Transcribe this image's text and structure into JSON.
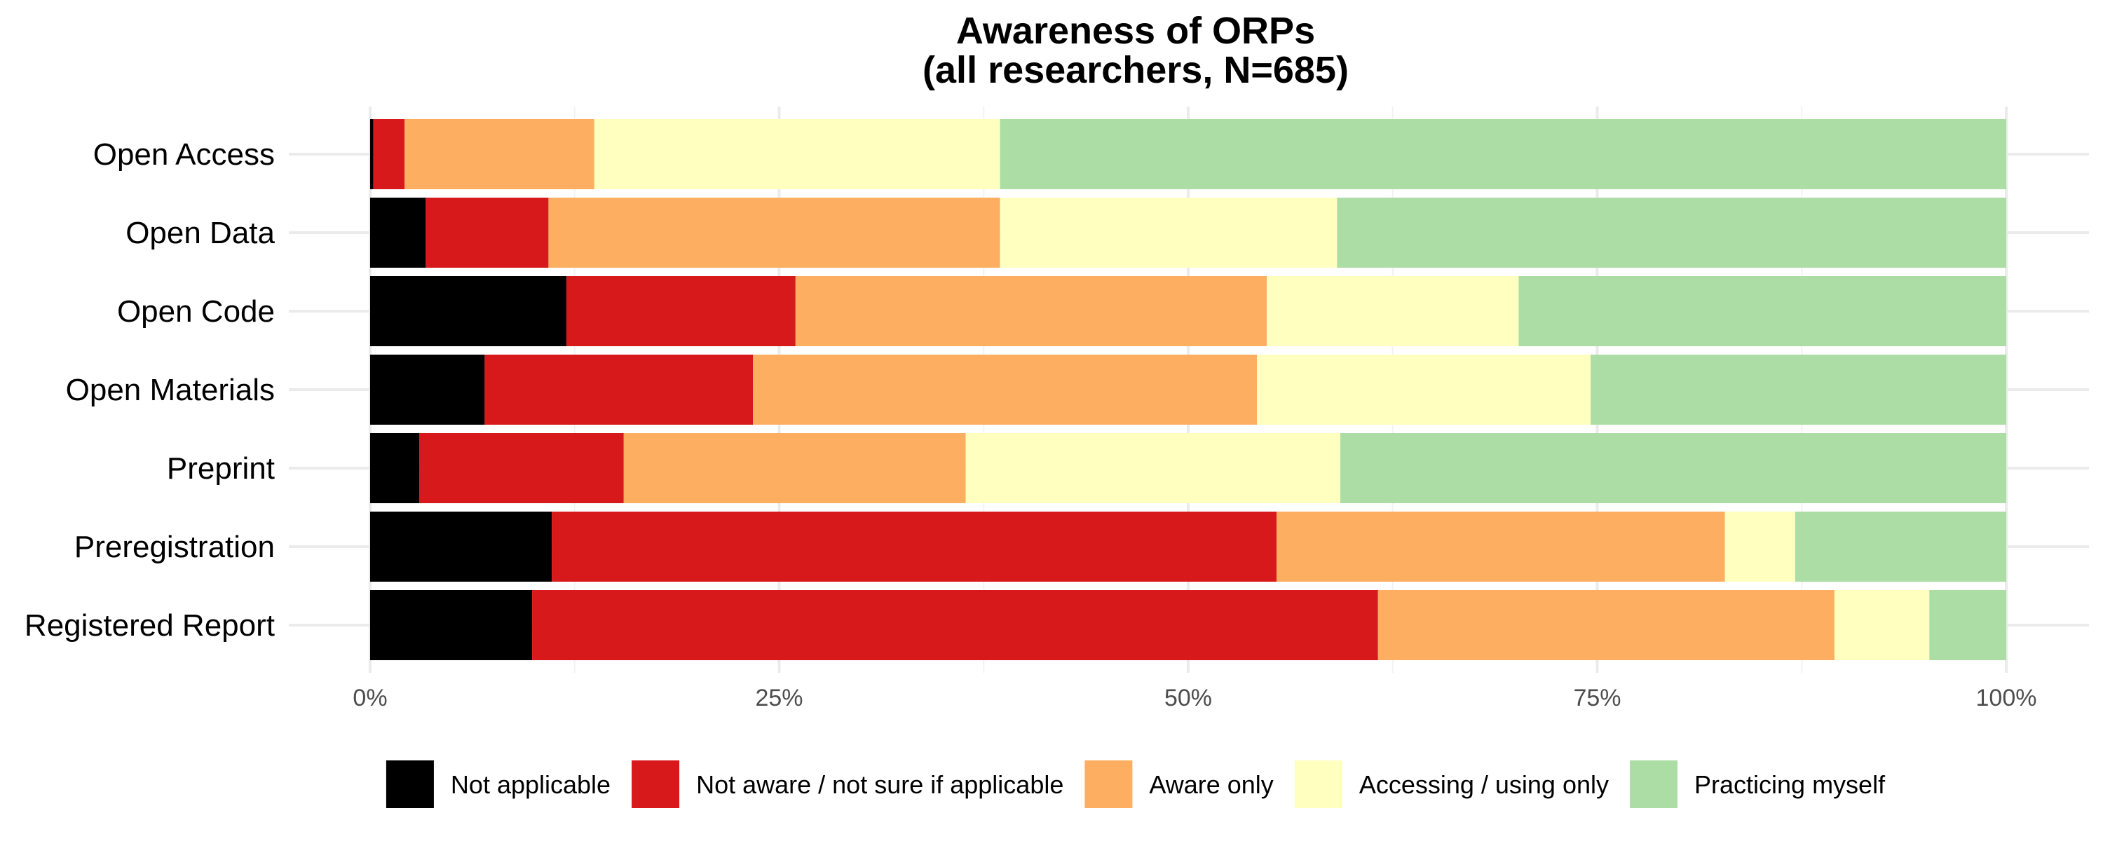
{
  "chart_data": {
    "type": "bar",
    "orientation": "horizontal",
    "stacked": true,
    "title": "Awareness of ORPs",
    "subtitle": "(all researchers, N=685)",
    "categories": [
      "Open Access",
      "Open Data",
      "Open Code",
      "Open Materials",
      "Preprint",
      "Preregistration",
      "Registered Report"
    ],
    "series": [
      {
        "name": "Not applicable",
        "color": "#000000",
        "values": [
          0.2,
          3.4,
          12.0,
          7.0,
          3.0,
          11.1,
          9.9
        ]
      },
      {
        "name": "Not aware / not sure if applicable",
        "color": "#d7191c",
        "values": [
          1.9,
          7.5,
          14.0,
          16.4,
          12.5,
          44.3,
          51.7
        ]
      },
      {
        "name": "Aware only",
        "color": "#fdae61",
        "values": [
          11.6,
          27.6,
          28.8,
          30.8,
          20.9,
          27.4,
          27.9
        ]
      },
      {
        "name": "Accessing / using only",
        "color": "#ffffbf",
        "values": [
          24.8,
          20.6,
          15.4,
          20.4,
          22.9,
          4.3,
          5.8
        ]
      },
      {
        "name": "Practicing myself",
        "color": "#abdda4",
        "values": [
          61.5,
          40.9,
          29.8,
          25.4,
          40.7,
          12.9,
          4.7
        ]
      }
    ],
    "xlim": [
      0,
      100
    ],
    "xticks": [
      "0%",
      "25%",
      "50%",
      "75%",
      "100%"
    ],
    "xlabel": "",
    "ylabel": "",
    "grid": true,
    "legend": "bottom"
  }
}
